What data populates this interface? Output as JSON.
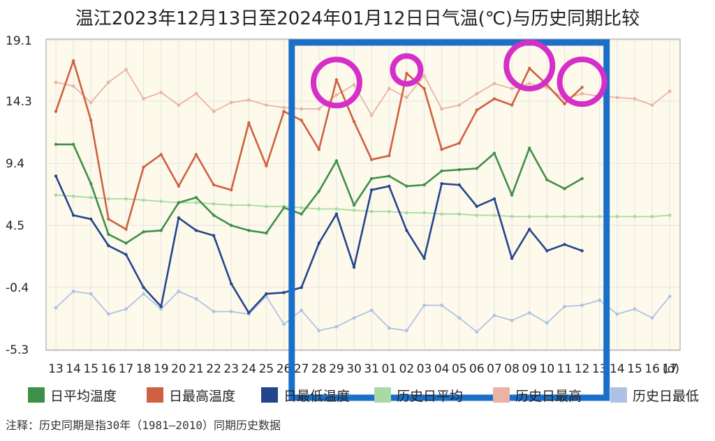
{
  "chart_data": {
    "type": "line",
    "title": "温江2023年12月13日至2024年01月12日日气温(℃)与历史同期比较",
    "x_unit": "(d)",
    "categories": [
      "13",
      "14",
      "15",
      "16",
      "17",
      "18",
      "19",
      "20",
      "21",
      "22",
      "23",
      "24",
      "25",
      "26",
      "27",
      "28",
      "29",
      "30",
      "31",
      "01",
      "02",
      "03",
      "04",
      "05",
      "06",
      "07",
      "08",
      "09",
      "10",
      "11",
      "12",
      "13",
      "14",
      "15",
      "16",
      "17"
    ],
    "y_ticks": [
      "19.1",
      "14.3",
      "9.4",
      "4.5",
      "-0.4",
      "-5.3"
    ],
    "ylim": [
      -5.3,
      19.1
    ],
    "grid": true,
    "legend_position": "bottom",
    "series": [
      {
        "name": "日平均温度",
        "color": "#3e8f48",
        "values": [
          10.9,
          10.9,
          7.8,
          3.8,
          3.1,
          4.0,
          4.1,
          6.3,
          6.7,
          5.3,
          4.5,
          4.1,
          3.9,
          5.9,
          5.4,
          7.2,
          9.6,
          6.1,
          8.2,
          8.4,
          7.6,
          7.7,
          8.8,
          8.9,
          9.0,
          10.2,
          6.9,
          10.6,
          8.1,
          7.4,
          8.2,
          null,
          null,
          null,
          null,
          null
        ]
      },
      {
        "name": "日最高温度",
        "color": "#cf6040",
        "values": [
          13.5,
          17.5,
          12.8,
          5.0,
          4.2,
          9.1,
          10.1,
          7.6,
          10.1,
          7.7,
          7.3,
          12.6,
          9.2,
          13.5,
          12.8,
          10.5,
          16.0,
          12.7,
          9.7,
          10.0,
          16.5,
          15.3,
          10.5,
          11.0,
          13.6,
          14.5,
          14.0,
          16.9,
          15.6,
          14.1,
          15.4,
          null,
          null,
          null,
          null,
          null
        ]
      },
      {
        "name": "日最低温度",
        "color": "#23458c",
        "values": [
          8.4,
          5.3,
          5.0,
          2.9,
          2.2,
          -0.4,
          -1.9,
          5.1,
          4.1,
          3.7,
          -0.1,
          -2.4,
          -0.9,
          -0.8,
          -0.4,
          3.1,
          5.4,
          1.2,
          7.3,
          7.6,
          4.1,
          1.9,
          7.8,
          7.7,
          6.0,
          6.6,
          1.9,
          4.2,
          2.5,
          3.0,
          2.5,
          null,
          null,
          null,
          null,
          null
        ]
      },
      {
        "name": "历史日平均",
        "color": "#a9d9a5",
        "values": [
          6.9,
          6.8,
          6.7,
          6.6,
          6.6,
          6.5,
          6.4,
          6.3,
          6.3,
          6.2,
          6.1,
          6.1,
          6.0,
          6.0,
          5.9,
          5.8,
          5.8,
          5.7,
          5.6,
          5.6,
          5.5,
          5.5,
          5.4,
          5.4,
          5.3,
          5.3,
          5.2,
          5.2,
          5.2,
          5.2,
          5.2,
          5.2,
          5.2,
          5.2,
          5.2,
          5.3
        ]
      },
      {
        "name": "历史日最高",
        "color": "#e9b3a6",
        "values": [
          15.8,
          15.5,
          14.2,
          15.8,
          16.8,
          14.5,
          15.0,
          14.0,
          14.9,
          13.5,
          14.2,
          14.4,
          14.0,
          13.8,
          13.7,
          13.7,
          14.8,
          15.6,
          13.2,
          15.3,
          14.6,
          16.3,
          13.7,
          14.0,
          14.9,
          15.7,
          15.3,
          15.7,
          15.4,
          14.5,
          14.9,
          14.7,
          14.6,
          14.5,
          14.0,
          15.1
        ]
      },
      {
        "name": "历史日最低",
        "color": "#aec2e6",
        "values": [
          -2.0,
          -0.7,
          -0.9,
          -2.5,
          -2.1,
          -0.9,
          -2.1,
          -0.7,
          -1.3,
          -2.3,
          -2.3,
          -2.5,
          -1.1,
          -3.3,
          -2.2,
          -3.8,
          -3.5,
          -2.8,
          -2.2,
          -3.6,
          -3.8,
          -1.8,
          -1.8,
          -2.8,
          -3.9,
          -2.6,
          -3.0,
          -2.4,
          -3.2,
          -1.9,
          -1.8,
          -1.4,
          -2.5,
          -2.1,
          -2.8,
          -1.1
        ]
      }
    ],
    "annotations": {
      "highlight_box_color": "#1a6fc9",
      "circle_color": "#d62ec8",
      "highlight_range": [
        "28",
        "13"
      ],
      "circled_points": [
        "29",
        "02",
        "09",
        "12"
      ]
    }
  },
  "footnote": "注释：历史同期是指30年（1981—2010）同期历史数据"
}
